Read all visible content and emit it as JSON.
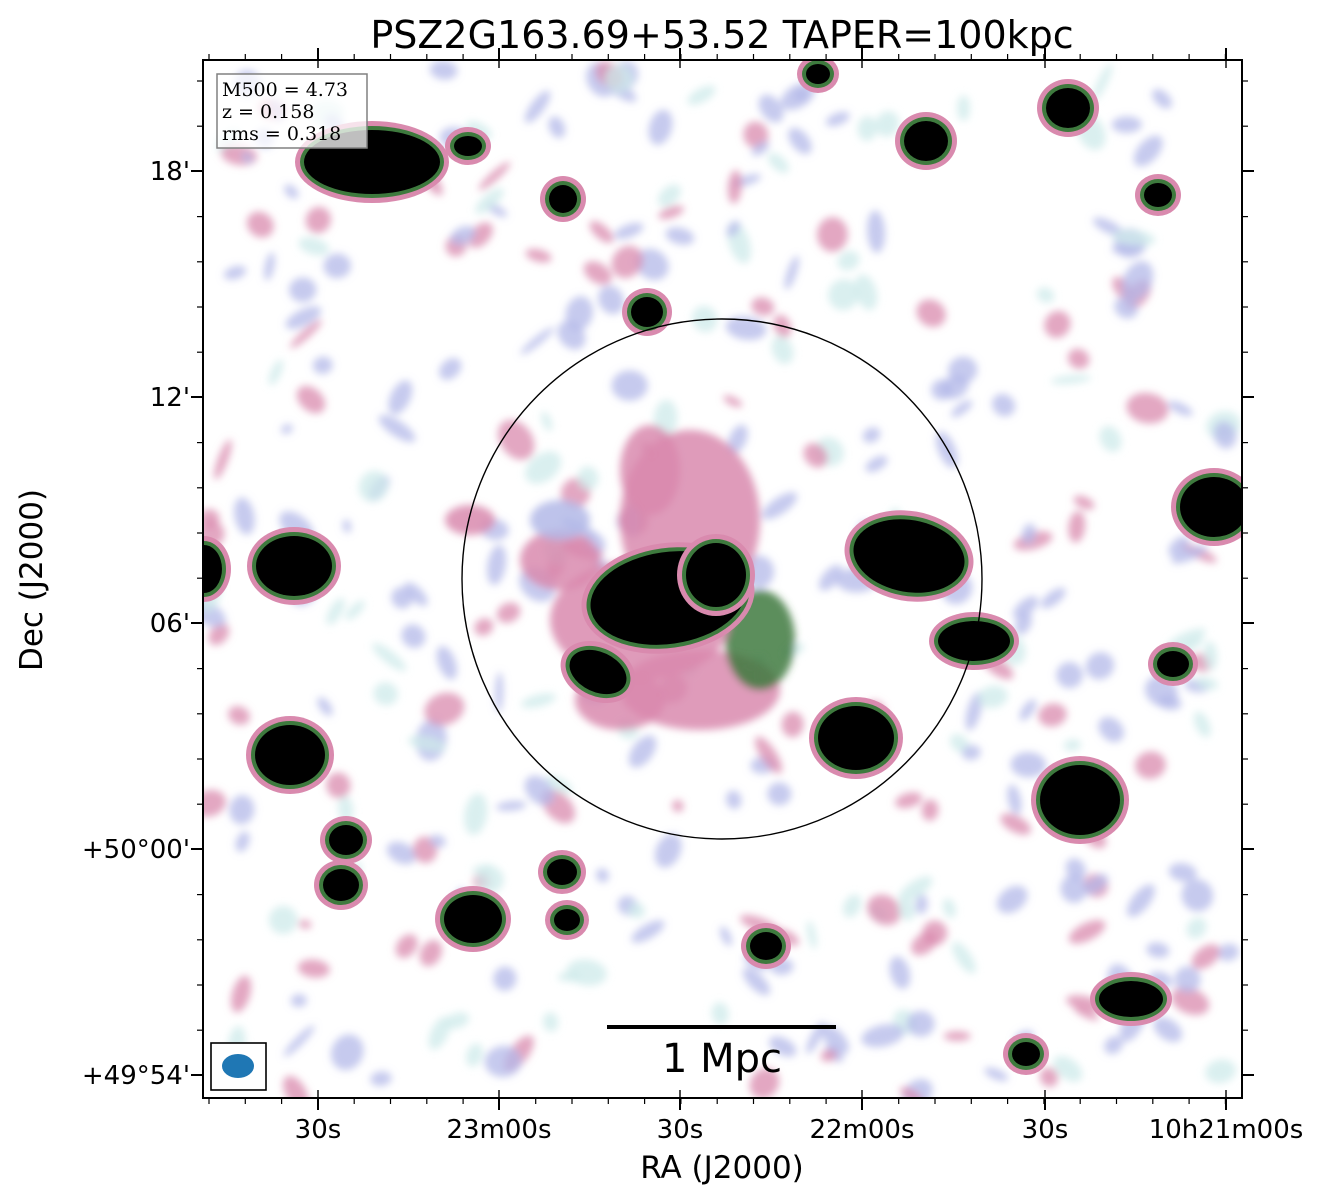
{
  "figure": {
    "title": "PSZ2G163.69+53.52 TAPER=100kpc",
    "xlabel": "RA (J2000)",
    "ylabel": "Dec (J2000)",
    "x_ticks": [
      "30s",
      "23m00s",
      "30s",
      "22m00s",
      "30s",
      "10h21m00s"
    ],
    "y_ticks": [
      "18'",
      "12'",
      "06'",
      "+50°00'",
      "+49°54'"
    ],
    "info": {
      "m500": "M500 = 4.73",
      "z": "z = 0.158",
      "rms": "rms = 0.318"
    },
    "scalebar_label": "1 Mpc",
    "colors": {
      "faint": "#cdeaea",
      "lavender": "#b3b8e8",
      "pink": "#d98aae",
      "green": "#3e7a3e",
      "bright": "#000000",
      "beam": "#1f77b4"
    }
  }
}
